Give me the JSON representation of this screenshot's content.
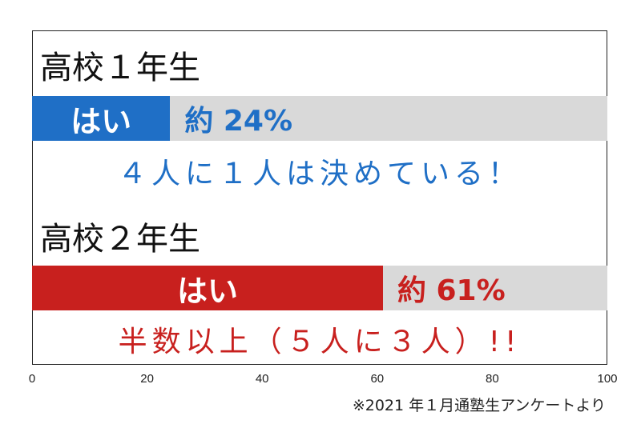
{
  "chart_data": {
    "type": "bar",
    "orientation": "horizontal",
    "xlim": [
      0,
      100
    ],
    "xticks": [
      "0",
      "20",
      "40",
      "60",
      "80",
      "100"
    ],
    "grid": false,
    "groups": [
      {
        "title": "高校１年生",
        "bar_label": "はい",
        "value": 24,
        "value_label": "約 24%",
        "note": "４人に１人は決めている！",
        "color": "#1f6fc6"
      },
      {
        "title": "高校２年生",
        "bar_label": "はい",
        "value": 61,
        "value_label": "約 61%",
        "note": "半数以上（５人に３人）!!",
        "color": "#c8201e"
      }
    ],
    "source": "※2021 年１月通塾生アンケートより"
  },
  "colors": {
    "track": "#d9d9d9",
    "frame": "#222222"
  }
}
